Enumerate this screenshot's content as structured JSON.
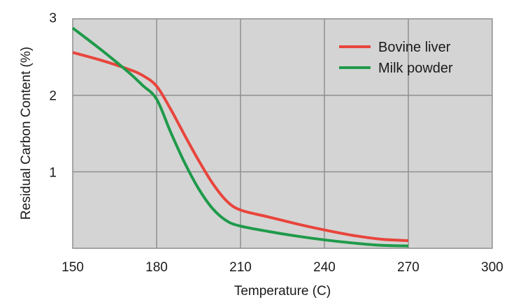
{
  "chart_data": {
    "type": "line",
    "xlabel": "Temperature (C)",
    "ylabel": "Residual Carbon Content (%)",
    "xlim": [
      150,
      300
    ],
    "ylim": [
      0,
      3
    ],
    "x_ticks": [
      "150",
      "180",
      "210",
      "240",
      "270",
      "300"
    ],
    "y_ticks": [
      "1",
      "2",
      "3"
    ],
    "grid": true,
    "legend_position": "top-right",
    "plot_background": "#d4d4d4",
    "grid_color": "#8e8e8e",
    "series": [
      {
        "name": "Bovine liver",
        "color": "#e8453c",
        "x": [
          150,
          160,
          170,
          175,
          180,
          185,
          190,
          195,
          200,
          205,
          210,
          220,
          230,
          240,
          250,
          260,
          270
        ],
        "y": [
          2.56,
          2.46,
          2.34,
          2.26,
          2.12,
          1.82,
          1.48,
          1.15,
          0.85,
          0.62,
          0.5,
          0.41,
          0.32,
          0.24,
          0.17,
          0.12,
          0.1
        ]
      },
      {
        "name": "Milk powder",
        "color": "#1f9a4a",
        "x": [
          150,
          160,
          170,
          175,
          180,
          185,
          190,
          195,
          200,
          205,
          210,
          220,
          230,
          240,
          250,
          260,
          270
        ],
        "y": [
          2.88,
          2.6,
          2.3,
          2.13,
          1.95,
          1.52,
          1.12,
          0.78,
          0.52,
          0.36,
          0.29,
          0.22,
          0.16,
          0.11,
          0.07,
          0.04,
          0.03
        ]
      }
    ]
  }
}
